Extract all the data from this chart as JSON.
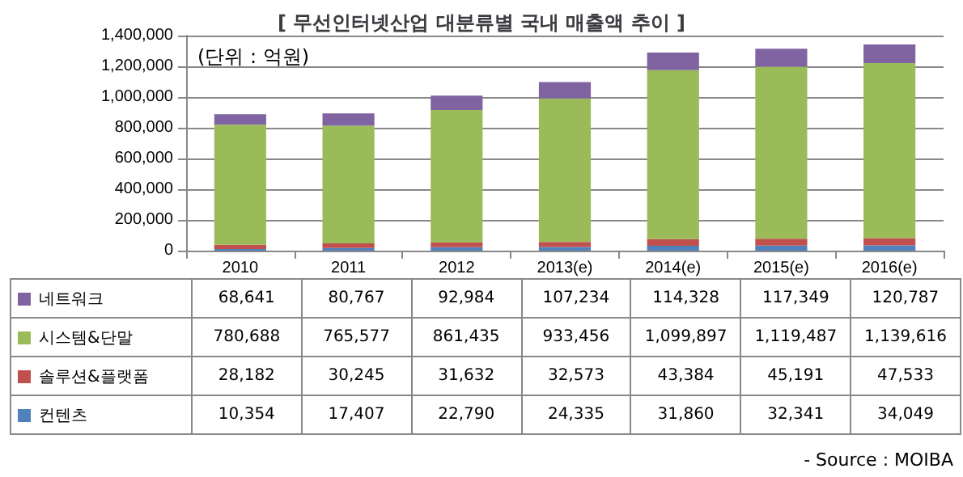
{
  "chart_data": {
    "type": "bar",
    "title": "[ 무선인터넷산업 대분류별 국내 매출액 추이 ]",
    "stacked": true,
    "categories": [
      "2010",
      "2011",
      "2012",
      "2013(e)",
      "2014(e)",
      "2015(e)",
      "2016(e)"
    ],
    "series": [
      {
        "name": "컨텐츠",
        "color": "#4f81bd",
        "values": [
          10354,
          17407,
          22790,
          24335,
          31860,
          32341,
          34049
        ],
        "value_labels": [
          "10,354",
          "17,407",
          "22,790",
          "24,335",
          "31,860",
          "32,341",
          "34,049"
        ]
      },
      {
        "name": "솔루션&플랫폼",
        "color": "#c0504d",
        "values": [
          28182,
          30245,
          31632,
          32573,
          43384,
          45191,
          47533
        ],
        "value_labels": [
          "28,182",
          "30,245",
          "31,632",
          "32,573",
          "43,384",
          "45,191",
          "47,533"
        ]
      },
      {
        "name": "시스템&단말",
        "color": "#9bbb59",
        "values": [
          780688,
          765577,
          861435,
          933456,
          1099897,
          1119487,
          1139616
        ],
        "value_labels": [
          "780,688",
          "765,577",
          "861,435",
          "933,456",
          "1,099,897",
          "1,119,487",
          "1,139,616"
        ]
      },
      {
        "name": "네트워크",
        "color": "#8064a2",
        "values": [
          68641,
          80767,
          92984,
          107234,
          114328,
          117349,
          120787
        ],
        "value_labels": [
          "68,641",
          "80,767",
          "92,984",
          "107,234",
          "114,328",
          "117,349",
          "120,787"
        ]
      }
    ],
    "ylim": [
      0,
      1400000
    ],
    "yticks": [
      0,
      {
        "value": 200000,
        "label": "200,000"
      },
      {
        "value": 400000,
        "label": "400,000"
      },
      {
        "value": 600000,
        "label": "600,000"
      },
      {
        "value": 800000,
        "label": "800,000"
      },
      {
        "value": 1000000,
        "label": "1,000,000"
      },
      {
        "value": 1200000,
        "label": "1,200,000"
      },
      {
        "value": 1400000,
        "label": "1,400,000"
      }
    ],
    "grid": "y",
    "legend": "bottom",
    "annotations": [
      "(단위 : 억원)",
      "- Source : MOIBA"
    ]
  }
}
